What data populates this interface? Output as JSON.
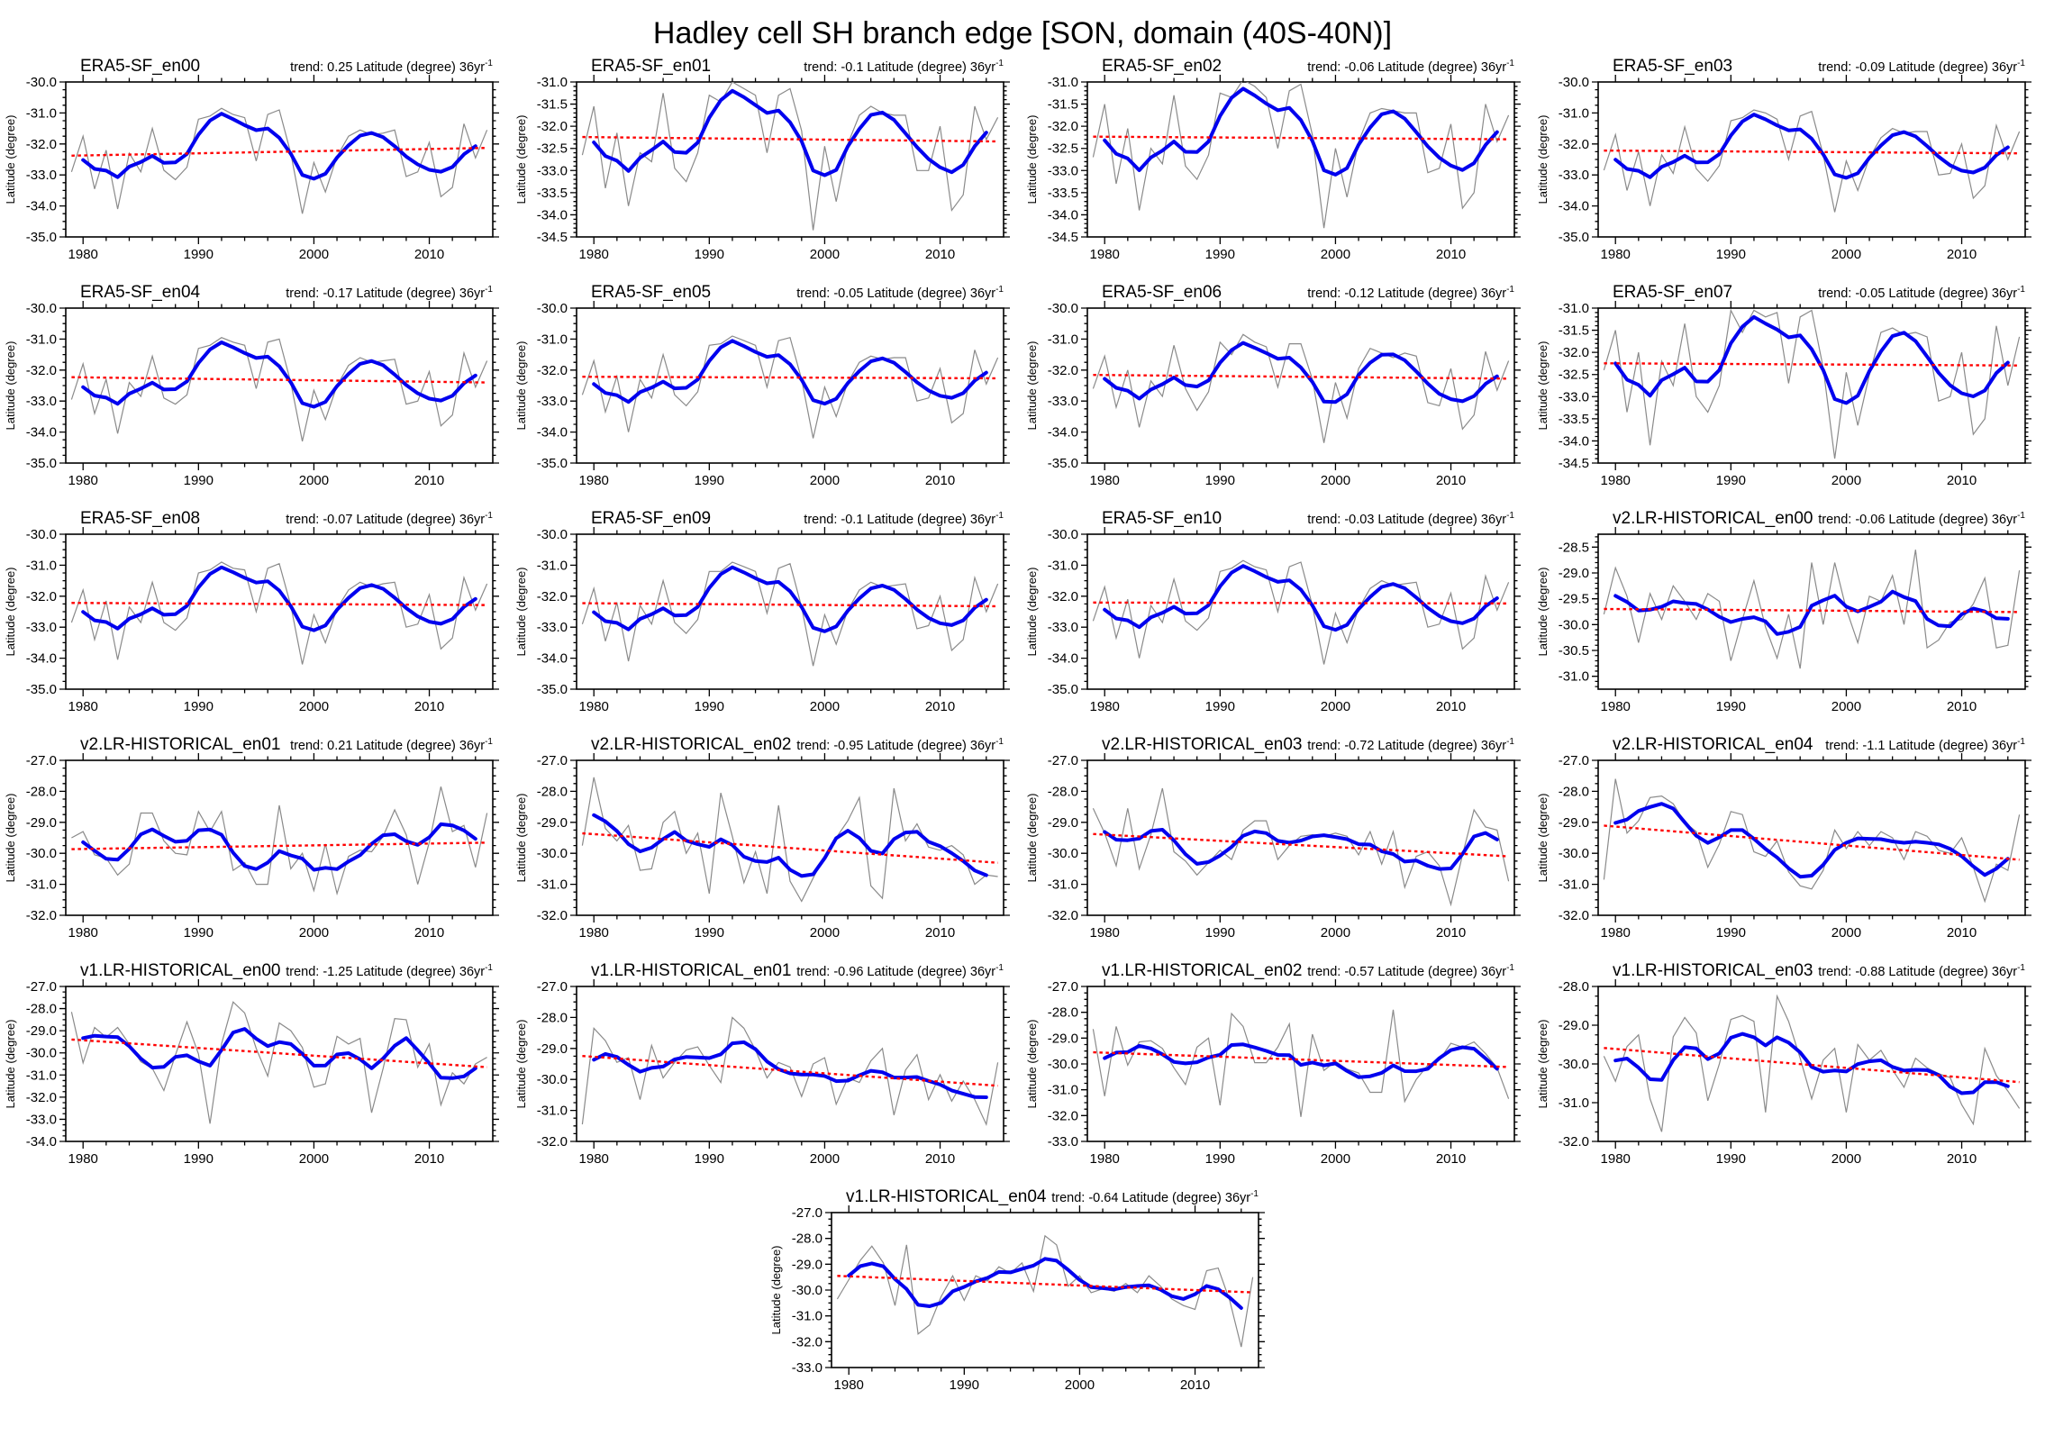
{
  "page_title": "Hadley cell SH branch edge [SON, domain (40S-40N)]",
  "colors": {
    "raw_line": "#8a8a8a",
    "smoothed_line": "#0000EE",
    "trend_line": "#FF0000",
    "axis": "#000000"
  },
  "axis": {
    "ylabel": "Latitude (degree)",
    "x_ticks": [
      1980,
      1990,
      2000,
      2010
    ],
    "x_minor_step": 2,
    "x_range": [
      1978.5,
      2015.5
    ],
    "years": [
      1979,
      1980,
      1981,
      1982,
      1983,
      1984,
      1985,
      1986,
      1987,
      1988,
      1989,
      1990,
      1991,
      1992,
      1993,
      1994,
      1995,
      1996,
      1997,
      1998,
      1999,
      2000,
      2001,
      2002,
      2003,
      2004,
      2005,
      2006,
      2007,
      2008,
      2009,
      2010,
      2011,
      2012,
      2013,
      2014,
      2015
    ]
  },
  "chart_data": [
    {
      "type": "line",
      "title": "ERA5-SF_en00",
      "trend": 0.25,
      "trend_label": "trend: 0.25 Latitude (degree) 36yr",
      "trend_sup": "-1",
      "ylim": [
        -35.0,
        -30.0
      ],
      "ytick_step": 1.0,
      "values": [
        -32.9,
        -31.75,
        -33.45,
        -32.2,
        -34.1,
        -32.3,
        -32.9,
        -31.5,
        -32.85,
        -33.15,
        -32.75,
        -31.2,
        -31.1,
        -30.85,
        -31.05,
        -31.15,
        -32.55,
        -31.05,
        -30.9,
        -32.3,
        -34.25,
        -32.6,
        -33.55,
        -32.4,
        -31.75,
        -31.55,
        -31.7,
        -31.65,
        -31.55,
        -33.05,
        -32.9,
        -31.95,
        -33.7,
        -33.4,
        -31.35,
        -32.45,
        -31.55
      ]
    },
    {
      "type": "line",
      "title": "ERA5-SF_en01",
      "trend": -0.1,
      "trend_label": "trend: -0.1 Latitude (degree) 36yr",
      "trend_sup": "-1",
      "ylim": [
        -34.5,
        -31.0
      ],
      "ytick_step": 0.5,
      "values": [
        -32.65,
        -31.55,
        -33.4,
        -32.15,
        -33.8,
        -32.6,
        -32.8,
        -31.25,
        -32.95,
        -33.25,
        -32.6,
        -31.3,
        -31.45,
        -31.0,
        -31.15,
        -31.3,
        -32.6,
        -31.3,
        -31.15,
        -32.1,
        -34.35,
        -32.45,
        -33.7,
        -32.4,
        -31.75,
        -31.55,
        -31.7,
        -31.75,
        -31.75,
        -33.0,
        -33.0,
        -32.0,
        -33.9,
        -33.55,
        -31.55,
        -32.3,
        -31.8
      ]
    },
    {
      "type": "line",
      "title": "ERA5-SF_en02",
      "trend": -0.06,
      "trend_label": "trend: -0.06 Latitude (degree) 36yr",
      "trend_sup": "-1",
      "ylim": [
        -34.5,
        -31.0
      ],
      "ytick_step": 0.5,
      "values": [
        -32.7,
        -31.5,
        -33.3,
        -32.05,
        -33.9,
        -32.5,
        -32.85,
        -31.3,
        -32.9,
        -33.2,
        -32.65,
        -31.25,
        -31.35,
        -30.95,
        -31.1,
        -31.35,
        -32.5,
        -31.2,
        -31.05,
        -32.2,
        -34.3,
        -32.5,
        -33.6,
        -32.35,
        -31.7,
        -31.6,
        -31.65,
        -31.7,
        -31.7,
        -33.05,
        -32.95,
        -31.95,
        -33.85,
        -33.5,
        -31.5,
        -32.35,
        -31.75
      ]
    },
    {
      "type": "line",
      "title": "ERA5-SF_en03",
      "trend": -0.09,
      "trend_label": "trend: -0.09 Latitude (degree) 36yr",
      "trend_sup": "-1",
      "ylim": [
        -35.0,
        -30.0
      ],
      "ytick_step": 1.0,
      "values": [
        -32.85,
        -31.7,
        -33.5,
        -32.25,
        -34.0,
        -32.35,
        -32.95,
        -31.45,
        -32.8,
        -33.2,
        -32.7,
        -31.25,
        -31.15,
        -30.9,
        -31.0,
        -31.2,
        -32.5,
        -31.1,
        -30.95,
        -32.35,
        -34.2,
        -32.55,
        -33.5,
        -32.45,
        -31.8,
        -31.5,
        -31.65,
        -31.6,
        -31.6,
        -33.0,
        -32.95,
        -32.0,
        -33.75,
        -33.35,
        -31.4,
        -32.5,
        -31.6
      ]
    },
    {
      "type": "line",
      "title": "ERA5-SF_en04",
      "trend": -0.17,
      "trend_label": "trend: -0.17 Latitude (degree) 36yr",
      "trend_sup": "-1",
      "ylim": [
        -35.0,
        -30.0
      ],
      "ytick_step": 1.0,
      "values": [
        -32.95,
        -31.8,
        -33.4,
        -32.3,
        -34.05,
        -32.4,
        -32.85,
        -31.55,
        -32.9,
        -33.1,
        -32.8,
        -31.3,
        -31.2,
        -30.95,
        -31.1,
        -31.2,
        -32.6,
        -31.1,
        -31.0,
        -32.4,
        -34.3,
        -32.65,
        -33.6,
        -32.5,
        -31.85,
        -31.6,
        -31.75,
        -31.7,
        -31.65,
        -33.1,
        -33.0,
        -32.05,
        -33.8,
        -33.45,
        -31.45,
        -32.55,
        -31.7
      ]
    },
    {
      "type": "line",
      "title": "ERA5-SF_en05",
      "trend": -0.05,
      "trend_label": "trend: -0.05 Latitude (degree) 36yr",
      "trend_sup": "-1",
      "ylim": [
        -35.0,
        -30.0
      ],
      "ytick_step": 1.0,
      "values": [
        -32.8,
        -31.7,
        -33.35,
        -32.2,
        -34.0,
        -32.3,
        -32.9,
        -31.5,
        -32.8,
        -33.15,
        -32.7,
        -31.2,
        -31.15,
        -30.9,
        -31.05,
        -31.2,
        -32.55,
        -31.05,
        -30.95,
        -32.3,
        -34.2,
        -32.55,
        -33.5,
        -32.4,
        -31.75,
        -31.55,
        -31.65,
        -31.6,
        -31.6,
        -33.0,
        -32.9,
        -31.95,
        -33.7,
        -33.4,
        -31.35,
        -32.45,
        -31.6
      ]
    },
    {
      "type": "line",
      "title": "ERA5-SF_en06",
      "trend": -0.12,
      "trend_label": "trend: -0.12 Latitude (degree) 36yr",
      "trend_sup": "-1",
      "ylim": [
        -35.0,
        -30.0
      ],
      "ytick_step": 1.0,
      "values": [
        -32.6,
        -31.55,
        -33.2,
        -32.0,
        -33.85,
        -32.35,
        -32.85,
        -31.2,
        -32.6,
        -33.3,
        -32.7,
        -31.1,
        -31.5,
        -30.85,
        -31.1,
        -31.25,
        -32.55,
        -31.15,
        -31.15,
        -32.3,
        -34.35,
        -32.4,
        -33.55,
        -31.95,
        -31.3,
        -31.45,
        -31.6,
        -31.45,
        -31.55,
        -33.05,
        -33.15,
        -31.95,
        -33.9,
        -33.45,
        -31.4,
        -32.65,
        -31.7
      ]
    },
    {
      "type": "line",
      "title": "ERA5-SF_en07",
      "trend": -0.05,
      "trend_label": "trend: -0.05 Latitude (degree) 36yr",
      "trend_sup": "-1",
      "ylim": [
        -34.5,
        -31.0
      ],
      "ytick_step": 0.5,
      "values": [
        -32.4,
        -31.5,
        -33.35,
        -32.0,
        -34.1,
        -32.2,
        -32.75,
        -31.35,
        -33.0,
        -33.35,
        -32.75,
        -31.05,
        -31.55,
        -31.05,
        -31.2,
        -31.1,
        -32.7,
        -31.2,
        -31.05,
        -32.35,
        -34.4,
        -32.45,
        -33.65,
        -32.5,
        -31.55,
        -31.45,
        -31.6,
        -31.55,
        -31.65,
        -33.1,
        -33.0,
        -32.0,
        -33.85,
        -33.5,
        -31.4,
        -32.75,
        -31.65
      ]
    },
    {
      "type": "line",
      "title": "ERA5-SF_en08",
      "trend": -0.07,
      "trend_label": "trend: -0.07 Latitude (degree) 36yr",
      "trend_sup": "-1",
      "ylim": [
        -35.0,
        -30.0
      ],
      "ytick_step": 1.0,
      "values": [
        -32.85,
        -31.8,
        -33.4,
        -32.15,
        -34.05,
        -32.35,
        -32.85,
        -31.55,
        -32.85,
        -33.1,
        -32.7,
        -31.25,
        -31.15,
        -30.9,
        -31.1,
        -31.15,
        -32.5,
        -31.1,
        -30.95,
        -32.3,
        -34.2,
        -32.6,
        -33.5,
        -32.4,
        -31.8,
        -31.55,
        -31.7,
        -31.6,
        -31.55,
        -33.0,
        -32.9,
        -31.95,
        -33.7,
        -33.35,
        -31.4,
        -32.45,
        -31.6
      ]
    },
    {
      "type": "line",
      "title": "ERA5-SF_en09",
      "trend": -0.1,
      "trend_label": "trend: -0.1 Latitude (degree) 36yr",
      "trend_sup": "-1",
      "ylim": [
        -35.0,
        -30.0
      ],
      "ytick_step": 1.0,
      "values": [
        -32.9,
        -31.75,
        -33.45,
        -32.2,
        -34.1,
        -32.3,
        -32.9,
        -31.5,
        -32.85,
        -33.2,
        -32.75,
        -31.2,
        -31.2,
        -30.9,
        -31.05,
        -31.2,
        -32.55,
        -31.1,
        -30.95,
        -32.35,
        -34.25,
        -32.6,
        -33.55,
        -32.45,
        -31.8,
        -31.55,
        -31.7,
        -31.65,
        -31.6,
        -33.05,
        -32.95,
        -32.0,
        -33.75,
        -33.4,
        -31.4,
        -32.5,
        -31.6
      ]
    },
    {
      "type": "line",
      "title": "ERA5-SF_en10",
      "trend": -0.03,
      "trend_label": "trend: -0.03 Latitude (degree) 36yr",
      "trend_sup": "-1",
      "ylim": [
        -35.0,
        -30.0
      ],
      "ytick_step": 1.0,
      "values": [
        -32.8,
        -31.7,
        -33.35,
        -32.1,
        -34.0,
        -32.3,
        -32.85,
        -31.45,
        -32.8,
        -33.1,
        -32.7,
        -31.2,
        -31.1,
        -30.85,
        -31.05,
        -31.15,
        -32.5,
        -31.05,
        -30.9,
        -32.3,
        -34.2,
        -32.55,
        -33.5,
        -32.4,
        -31.75,
        -31.5,
        -31.65,
        -31.6,
        -31.55,
        -33.0,
        -32.9,
        -31.9,
        -33.7,
        -33.35,
        -31.35,
        -32.45,
        -31.55
      ]
    },
    {
      "type": "line",
      "title": "v2.LR-HISTORICAL_en00",
      "trend": -0.06,
      "trend_label": "trend: -0.06 Latitude (degree) 36yr",
      "trend_sup": "-1",
      "ylim": [
        -31.25,
        -28.25
      ],
      "ytick_step": 0.5,
      "values": [
        -29.8,
        -28.9,
        -29.45,
        -30.35,
        -29.4,
        -29.9,
        -29.25,
        -29.55,
        -29.9,
        -29.4,
        -29.55,
        -30.7,
        -29.9,
        -29.15,
        -30.05,
        -30.65,
        -29.8,
        -30.85,
        -28.8,
        -30.0,
        -28.8,
        -29.7,
        -30.35,
        -29.45,
        -29.55,
        -29.05,
        -30.0,
        -28.55,
        -30.45,
        -30.3,
        -29.95,
        -29.9,
        -29.6,
        -29.1,
        -30.45,
        -30.4,
        -28.95
      ]
    },
    {
      "type": "line",
      "title": "v2.LR-HISTORICAL_en01",
      "trend": 0.21,
      "trend_label": "trend: 0.21 Latitude (degree) 36yr",
      "trend_sup": "-1",
      "ylim": [
        -32.0,
        -27.0
      ],
      "ytick_step": 1.0,
      "values": [
        -29.5,
        -29.3,
        -30.05,
        -30.15,
        -30.7,
        -30.35,
        -28.7,
        -28.7,
        -29.6,
        -30.0,
        -30.05,
        -28.65,
        -29.3,
        -28.65,
        -30.55,
        -30.3,
        -31.0,
        -31.0,
        -28.45,
        -30.5,
        -30.0,
        -31.2,
        -29.7,
        -31.3,
        -30.1,
        -29.9,
        -29.95,
        -29.45,
        -28.6,
        -29.4,
        -31.0,
        -29.65,
        -27.85,
        -29.3,
        -29.1,
        -30.45,
        -28.7
      ]
    },
    {
      "type": "line",
      "title": "v2.LR-HISTORICAL_en02",
      "trend": -0.95,
      "trend_label": "trend: -0.95 Latitude (degree) 36yr",
      "trend_sup": "-1",
      "ylim": [
        -32.0,
        -27.0
      ],
      "ytick_step": 1.0,
      "values": [
        -29.75,
        -27.55,
        -29.2,
        -29.6,
        -29.1,
        -30.55,
        -30.5,
        -29.0,
        -28.65,
        -30.0,
        -29.35,
        -31.3,
        -28.05,
        -29.45,
        -30.95,
        -29.95,
        -31.3,
        -28.45,
        -30.9,
        -31.55,
        -30.8,
        -30.1,
        -29.5,
        -28.95,
        -28.2,
        -31.05,
        -31.45,
        -27.9,
        -29.6,
        -29.05,
        -29.8,
        -29.9,
        -29.75,
        -30.05,
        -31.0,
        -30.7,
        -30.75
      ]
    },
    {
      "type": "line",
      "title": "v2.LR-HISTORICAL_en03",
      "trend": -0.72,
      "trend_label": "trend: -0.72 Latitude (degree) 36yr",
      "trend_sup": "-1",
      "ylim": [
        -32.0,
        -27.0
      ],
      "ytick_step": 1.0,
      "values": [
        -28.55,
        -29.35,
        -30.4,
        -28.55,
        -30.5,
        -29.4,
        -27.9,
        -29.95,
        -30.25,
        -30.7,
        -30.3,
        -29.9,
        -30.2,
        -29.25,
        -28.95,
        -28.95,
        -30.2,
        -29.75,
        -29.45,
        -29.4,
        -29.45,
        -29.35,
        -29.45,
        -30.05,
        -29.3,
        -30.35,
        -29.3,
        -31.1,
        -30.1,
        -29.95,
        -30.4,
        -31.65,
        -30.05,
        -28.6,
        -29.15,
        -29.25,
        -30.9
      ]
    },
    {
      "type": "line",
      "title": "v2.LR-HISTORICAL_en04",
      "trend": -1.1,
      "trend_label": "trend: -1.1 Latitude (degree) 36yr",
      "trend_sup": "-1",
      "ylim": [
        -32.0,
        -27.0
      ],
      "ytick_step": 1.0,
      "values": [
        -30.85,
        -27.6,
        -29.35,
        -28.95,
        -28.2,
        -28.15,
        -28.4,
        -29.0,
        -29.3,
        -30.45,
        -29.7,
        -28.65,
        -28.75,
        -29.95,
        -30.1,
        -29.6,
        -30.6,
        -31.05,
        -31.15,
        -30.55,
        -29.25,
        -29.85,
        -29.3,
        -29.75,
        -29.3,
        -29.5,
        -30.2,
        -29.3,
        -29.45,
        -29.9,
        -30.0,
        -29.5,
        -30.45,
        -31.55,
        -30.35,
        -30.55,
        -28.75
      ]
    },
    {
      "type": "line",
      "title": "v1.LR-HISTORICAL_en00",
      "trend": -1.25,
      "trend_label": "trend: -1.25 Latitude (degree) 36yr",
      "trend_sup": "-1",
      "ylim": [
        -34.0,
        -27.0
      ],
      "ytick_step": 1.0,
      "values": [
        -28.15,
        -30.45,
        -28.85,
        -29.3,
        -28.85,
        -29.6,
        -30.4,
        -30.7,
        -31.7,
        -30.1,
        -28.6,
        -30.05,
        -33.2,
        -29.6,
        -27.7,
        -28.2,
        -29.8,
        -31.05,
        -28.65,
        -29.0,
        -29.75,
        -31.55,
        -31.4,
        -29.25,
        -29.6,
        -29.35,
        -32.7,
        -30.7,
        -28.45,
        -28.5,
        -30.65,
        -29.6,
        -32.35,
        -30.9,
        -31.4,
        -30.5,
        -30.2
      ]
    },
    {
      "type": "line",
      "title": "v1.LR-HISTORICAL_en01",
      "trend": -0.96,
      "trend_label": "trend: -0.96 Latitude (degree) 36yr",
      "trend_sup": "-1",
      "ylim": [
        -32.0,
        -27.0
      ],
      "ytick_step": 1.0,
      "values": [
        -31.45,
        -28.35,
        -28.75,
        -29.45,
        -29.3,
        -30.65,
        -28.9,
        -29.95,
        -29.45,
        -29.05,
        -28.95,
        -29.55,
        -30.1,
        -28.0,
        -28.35,
        -29.05,
        -29.95,
        -29.45,
        -29.6,
        -30.55,
        -29.5,
        -29.3,
        -30.8,
        -29.95,
        -30.1,
        -29.4,
        -29.0,
        -31.15,
        -29.7,
        -29.2,
        -30.65,
        -29.85,
        -30.7,
        -30.05,
        -30.65,
        -31.45,
        -29.45
      ]
    },
    {
      "type": "line",
      "title": "v1.LR-HISTORICAL_en02",
      "trend": -0.57,
      "trend_label": "trend: -0.57 Latitude (degree) 36yr",
      "trend_sup": "-1",
      "ylim": [
        -33.0,
        -27.0
      ],
      "ytick_step": 1.0,
      "values": [
        -28.65,
        -31.25,
        -28.55,
        -30.05,
        -29.15,
        -29.1,
        -29.4,
        -30.15,
        -30.8,
        -29.35,
        -29.0,
        -31.6,
        -28.05,
        -28.55,
        -29.95,
        -29.95,
        -29.35,
        -28.45,
        -32.05,
        -28.85,
        -30.25,
        -29.9,
        -30.2,
        -30.35,
        -31.1,
        -31.1,
        -27.9,
        -31.45,
        -30.6,
        -30.05,
        -29.85,
        -29.2,
        -29.35,
        -29.15,
        -29.6,
        -30.15,
        -31.35
      ]
    },
    {
      "type": "line",
      "title": "v1.LR-HISTORICAL_en03",
      "trend": -0.88,
      "trend_label": "trend: -0.88 Latitude (degree) 36yr",
      "trend_sup": "-1",
      "ylim": [
        -32.0,
        -28.0
      ],
      "ytick_step": 1.0,
      "values": [
        -29.8,
        -30.45,
        -29.55,
        -29.25,
        -30.9,
        -31.75,
        -29.3,
        -28.8,
        -29.2,
        -30.95,
        -30.0,
        -28.85,
        -28.75,
        -28.9,
        -31.25,
        -28.25,
        -28.9,
        -29.85,
        -30.9,
        -29.9,
        -29.6,
        -31.25,
        -29.5,
        -29.9,
        -29.65,
        -30.15,
        -30.6,
        -29.85,
        -30.1,
        -30.25,
        -30.35,
        -31.05,
        -31.55,
        -29.6,
        -30.3,
        -30.7,
        -31.15
      ]
    },
    {
      "type": "line",
      "title": "v1.LR-HISTORICAL_en04",
      "trend": -0.64,
      "trend_label": "trend: -0.64 Latitude (degree) 36yr",
      "trend_sup": "-1",
      "ylim": [
        -33.0,
        -27.0
      ],
      "ytick_step": 1.0,
      "values": [
        -30.35,
        -29.6,
        -28.85,
        -28.3,
        -28.95,
        -30.6,
        -28.25,
        -31.7,
        -31.35,
        -30.25,
        -29.45,
        -30.4,
        -29.45,
        -29.65,
        -29.1,
        -29.35,
        -28.95,
        -30.05,
        -27.9,
        -28.25,
        -29.85,
        -29.45,
        -30.1,
        -29.95,
        -30.05,
        -29.75,
        -30.1,
        -29.45,
        -29.85,
        -30.35,
        -30.6,
        -30.75,
        -29.25,
        -29.15,
        -30.4,
        -32.2,
        -29.5
      ]
    }
  ]
}
